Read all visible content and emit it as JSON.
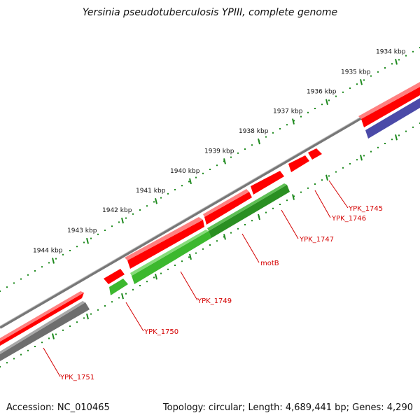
{
  "title": "Yersinia pseudotuberculosis YPIII, complete genome",
  "footer": {
    "accession": "Accession: NC_010465",
    "topology": "Topology: circular; Length: 4,689,441 bp; Genes: 4,290"
  },
  "kbp_labels": [
    "1934 kbp",
    "1935 kbp",
    "1936 kbp",
    "1937 kbp",
    "1938 kbp",
    "1939 kbp",
    "1940 kbp",
    "1941 kbp",
    "1942 kbp",
    "1943 kbp",
    "1944 kbp"
  ],
  "colors": {
    "red": "#ff0000",
    "green": "#3cb82e",
    "dark_green": "#2a8f22",
    "gray": "#707070",
    "navy": "#4b4aa8",
    "tick": "#1e8a1e",
    "label": "#d40000"
  },
  "genes": [
    {
      "label": "YPK_1745",
      "color": "red"
    },
    {
      "label": "YPK_1746",
      "color": "red"
    },
    {
      "label": "YPK_1747",
      "color": "dark_green"
    },
    {
      "label": "motB",
      "color": "dark_green"
    },
    {
      "label": "YPK_1749",
      "color": "green"
    },
    {
      "label": "YPK_1750",
      "color": "green"
    },
    {
      "label": "YPK_1751",
      "color": "gray"
    }
  ]
}
